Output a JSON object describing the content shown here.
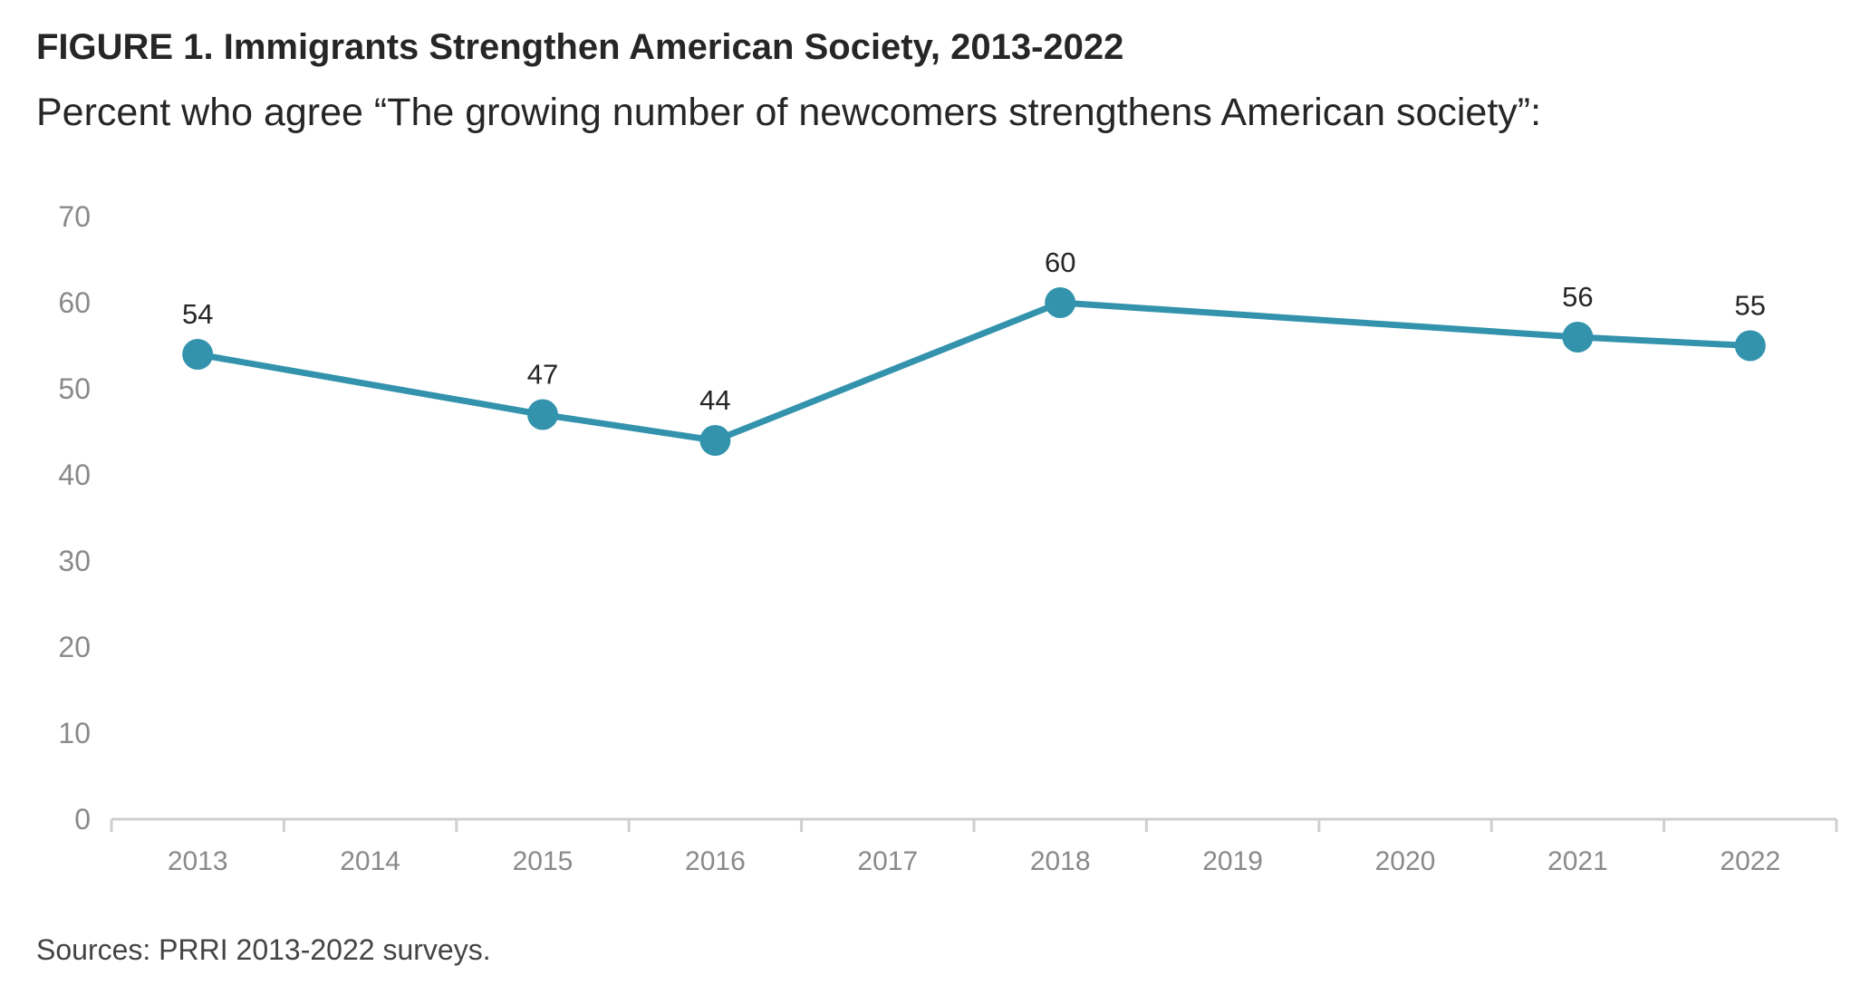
{
  "header": {
    "title": "FIGURE 1. Immigrants Strengthen American Society, 2013-2022",
    "subtitle": "Percent who agree “The growing number of newcomers strengthens American society”:"
  },
  "footer": {
    "source": "Sources: PRRI 2013-2022 surveys."
  },
  "colors": {
    "series": "#3393AD",
    "axis": "#cfcfcf",
    "tick_text": "#8a8a8a"
  },
  "chart_data": {
    "type": "line",
    "title": "FIGURE 1. Immigrants Strengthen American Society, 2013-2022",
    "xlabel": "",
    "ylabel": "",
    "x_categories": [
      "2013",
      "2014",
      "2015",
      "2016",
      "2017",
      "2018",
      "2019",
      "2020",
      "2021",
      "2022"
    ],
    "ylim": [
      0,
      70
    ],
    "yticks": [
      0,
      10,
      20,
      30,
      40,
      50,
      60,
      70
    ],
    "grid": false,
    "legend": "none",
    "series": [
      {
        "points": [
          {
            "x": "2013",
            "y": 54
          },
          {
            "x": "2015",
            "y": 47
          },
          {
            "x": "2016",
            "y": 44
          },
          {
            "x": "2018",
            "y": 60
          },
          {
            "x": "2021",
            "y": 56
          },
          {
            "x": "2022",
            "y": 55
          }
        ]
      }
    ]
  }
}
